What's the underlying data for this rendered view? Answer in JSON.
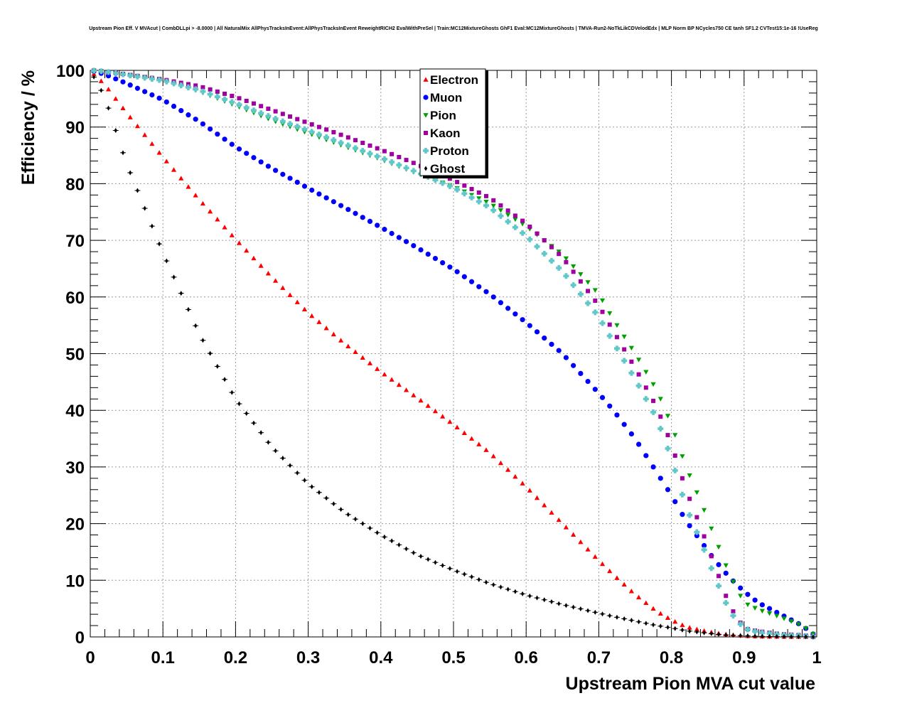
{
  "chart_data": {
    "type": "scatter",
    "title": "Upstream Pion Eff. V MVAcut | CombDLLpi > -8.0000 | All NaturalMix AllPhysTracksInEvent:AllPhysTracksInEvent ReweightRICH2 EvalWithPreSel | Train:MC12MixtureGhosts GhF1 Eval:MC12MixtureGhosts | TMVA-Run2-NoTkLikCDVelodEdx | MLP Norm BP NCycles750 CE tanh SF1.2 CVTest15:1e-16 !UseReg",
    "xlabel": "Upstream Pion MVA cut value",
    "ylabel": "Efficiency / %",
    "xlim": [
      0,
      1
    ],
    "ylim": [
      0,
      100
    ],
    "x_ticks": [
      0,
      0.1,
      0.2,
      0.3,
      0.4,
      0.5,
      0.6,
      0.7,
      0.8,
      0.9,
      1
    ],
    "x_tick_labels": [
      "0",
      "0.1",
      "0.2",
      "0.3",
      "0.4",
      "0.5",
      "0.6",
      "0.7",
      "0.8",
      "0.9",
      "1"
    ],
    "y_ticks": [
      0,
      10,
      20,
      30,
      40,
      50,
      60,
      70,
      80,
      90,
      100
    ],
    "y_tick_labels": [
      "0",
      "10",
      "20",
      "30",
      "40",
      "50",
      "60",
      "70",
      "80",
      "90",
      "100"
    ],
    "grid": true,
    "legend_position": "top-center",
    "x_knots": [
      0,
      0.02,
      0.05,
      0.1,
      0.15,
      0.2,
      0.25,
      0.3,
      0.35,
      0.4,
      0.45,
      0.5,
      0.55,
      0.6,
      0.65,
      0.7,
      0.72,
      0.75,
      0.78,
      0.8,
      0.82,
      0.84,
      0.86,
      0.88,
      0.9,
      0.92,
      0.95,
      0.98,
      1.0
    ],
    "series": [
      {
        "name": "Electron",
        "color": "#ff0000",
        "marker": "triangle-up",
        "values": [
          100,
          97.5,
          92.5,
          84.7,
          77.2,
          70.2,
          63.5,
          57.2,
          51.8,
          46.8,
          42.2,
          37.5,
          32.5,
          26.5,
          20.0,
          13.5,
          11.0,
          7.5,
          4.5,
          3.0,
          1.8,
          1.2,
          0.7,
          0.4,
          0.2,
          0.1,
          0.05,
          0.02,
          0
        ]
      },
      {
        "name": "Muon",
        "color": "#0000ff",
        "marker": "circle",
        "values": [
          100,
          99.3,
          97.7,
          94.8,
          91.0,
          86.5,
          82.7,
          79.2,
          75.8,
          72.3,
          68.7,
          64.9,
          60.5,
          55.5,
          50.0,
          43.0,
          40.0,
          35.0,
          29.0,
          25.0,
          20.5,
          17.0,
          13.5,
          10.5,
          8.0,
          6.0,
          4.0,
          2.0,
          0
        ]
      },
      {
        "name": "Pion",
        "color": "#00a000",
        "marker": "triangle-down",
        "values": [
          100,
          99.8,
          99.2,
          98.2,
          96.3,
          93.8,
          91.2,
          88.9,
          86.6,
          84.3,
          81.8,
          79.5,
          76.5,
          72.5,
          67.5,
          60.5,
          56.0,
          50.0,
          43.5,
          37.5,
          30.0,
          24.0,
          17.5,
          11.0,
          6.0,
          4.8,
          3.5,
          2.0,
          0
        ]
      },
      {
        "name": "Kaon",
        "color": "#a000a0",
        "marker": "square",
        "values": [
          100,
          99.8,
          99.3,
          98.4,
          97.2,
          95.3,
          93.0,
          90.7,
          88.4,
          86.0,
          83.4,
          80.6,
          77.5,
          73.0,
          67.0,
          58.5,
          54.0,
          47.5,
          40.5,
          34.0,
          26.0,
          19.5,
          12.5,
          5.5,
          1.5,
          1.0,
          0.5,
          0.3,
          0
        ]
      },
      {
        "name": "Proton",
        "color": "#60c8c8",
        "marker": "cross",
        "values": [
          100,
          99.8,
          99.2,
          98.2,
          96.5,
          94.2,
          91.7,
          89.4,
          87.0,
          84.6,
          82.0,
          79.3,
          75.8,
          70.8,
          64.5,
          56.5,
          52.0,
          45.5,
          38.5,
          31.5,
          23.0,
          17.0,
          10.5,
          4.5,
          1.5,
          0.8,
          0.4,
          0.2,
          0
        ]
      },
      {
        "name": "Ghost",
        "color": "#000000",
        "marker": "diamond",
        "values": [
          100,
          95.3,
          83.5,
          67.8,
          53.5,
          42.0,
          33.5,
          27.0,
          22.0,
          18.0,
          14.5,
          11.8,
          9.4,
          7.4,
          5.7,
          4.2,
          3.6,
          2.8,
          2.0,
          1.6,
          1.1,
          0.8,
          0.5,
          0.3,
          0.2,
          0.1,
          0.05,
          0.02,
          0
        ]
      }
    ]
  }
}
